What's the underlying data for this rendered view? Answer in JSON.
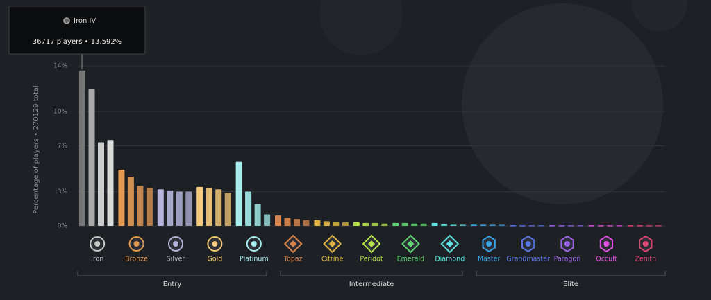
{
  "chart_data": {
    "type": "bar",
    "ylabel": "Percentage of players • 270129 total",
    "ylim": [
      0,
      14
    ],
    "yticks": [
      {
        "value": 0,
        "label": "0%"
      },
      {
        "value": 3,
        "label": "3%"
      },
      {
        "value": 7,
        "label": "7%"
      },
      {
        "value": 10,
        "label": "10%"
      },
      {
        "value": 14,
        "label": "14%"
      }
    ],
    "grid": true,
    "tooltip": {
      "title": "Iron IV",
      "text": "36717 players • 13.592%"
    },
    "tiers": [
      {
        "name": "Iron",
        "color": "#c9c9c9",
        "values": [
          13.592,
          12.0,
          7.3,
          7.5
        ]
      },
      {
        "name": "Bronze",
        "color": "#e29a55",
        "values": [
          4.9,
          4.3,
          3.5,
          3.3
        ]
      },
      {
        "name": "Silver",
        "color": "#b4b4dc",
        "values": [
          3.2,
          3.1,
          3.0,
          3.0
        ]
      },
      {
        "name": "Gold",
        "color": "#f4c97a",
        "values": [
          3.4,
          3.3,
          3.2,
          2.9
        ]
      },
      {
        "name": "Platinum",
        "color": "#a4ecec",
        "values": [
          5.6,
          3.0,
          1.9,
          1.0
        ]
      },
      {
        "name": "Topaz",
        "color": "#d9844c",
        "values": [
          0.9,
          0.7,
          0.6,
          0.5
        ]
      },
      {
        "name": "Citrine",
        "color": "#e2b545",
        "values": [
          0.5,
          0.4,
          0.3,
          0.3
        ]
      },
      {
        "name": "Peridot",
        "color": "#b6e04c",
        "values": [
          0.3,
          0.25,
          0.25,
          0.2
        ]
      },
      {
        "name": "Emerald",
        "color": "#5fd470",
        "values": [
          0.25,
          0.25,
          0.2,
          0.2
        ]
      },
      {
        "name": "Diamond",
        "color": "#5fe0e0",
        "values": [
          0.25,
          0.15,
          0.1,
          0.1
        ]
      },
      {
        "name": "Master",
        "color": "#3aa2e6",
        "values": [
          0.1,
          0.1,
          0.1,
          0.1
        ]
      },
      {
        "name": "Grandmaster",
        "color": "#5a76e6",
        "values": [
          0.05,
          0.05,
          0.05,
          0.05
        ]
      },
      {
        "name": "Paragon",
        "color": "#9a62e6",
        "values": [
          0.05,
          0.05,
          0.05,
          0.05
        ]
      },
      {
        "name": "Occult",
        "color": "#e04fe0",
        "values": [
          0.05,
          0.05,
          0.05,
          0.05
        ]
      },
      {
        "name": "Zenith",
        "color": "#e04472",
        "values": [
          0.05,
          0.05,
          0.05,
          0.05
        ]
      }
    ],
    "groups": [
      {
        "name": "Entry"
      },
      {
        "name": "Intermediate"
      },
      {
        "name": "Elite"
      }
    ]
  }
}
